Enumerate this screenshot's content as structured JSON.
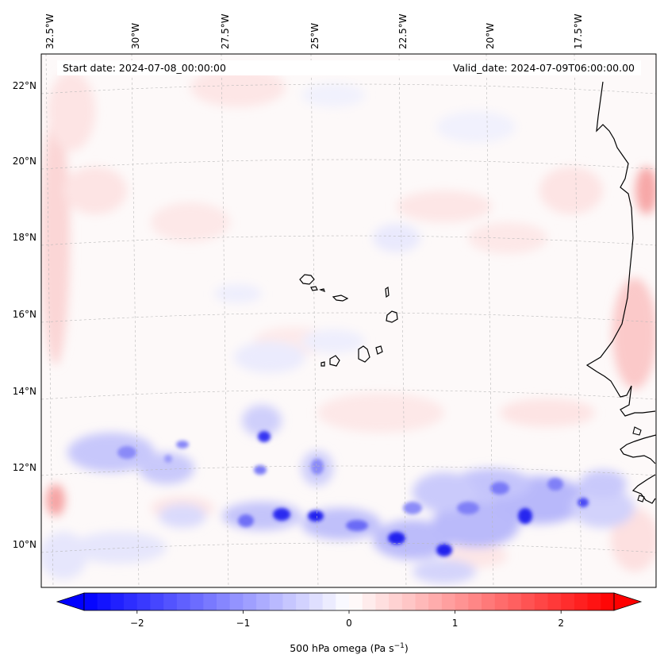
{
  "map": {
    "start_date": "Start date: 2024-07-08_00:00:00",
    "valid_date": "Valid_date: 2024-07-09T06:00:00.00",
    "lon_labels": [
      "32.5°W",
      "30°W",
      "27.5°W",
      "25°W",
      "22.5°W",
      "20°W",
      "17.5°W"
    ],
    "lat_labels": [
      "22°N",
      "20°N",
      "18°N",
      "16°N",
      "14°N",
      "12°N",
      "10°N"
    ],
    "gridlines": true,
    "field": "500 hPa vertical velocity (omega)",
    "land_outline_color": "#000000"
  },
  "colorbar": {
    "label": "500 hPa omega (Pa s",
    "label_sup": "−1",
    "label_close": ")",
    "ticks": [
      "−2",
      "−1",
      "0",
      "1",
      "2"
    ],
    "tick_values": [
      -2,
      -1,
      0,
      1,
      2
    ],
    "range": [
      -2.5,
      2.5
    ],
    "colormap": "bwr",
    "low_color": "#0000ff",
    "mid_color": "#ffffff",
    "high_color": "#ff0000",
    "extend": "both"
  }
}
